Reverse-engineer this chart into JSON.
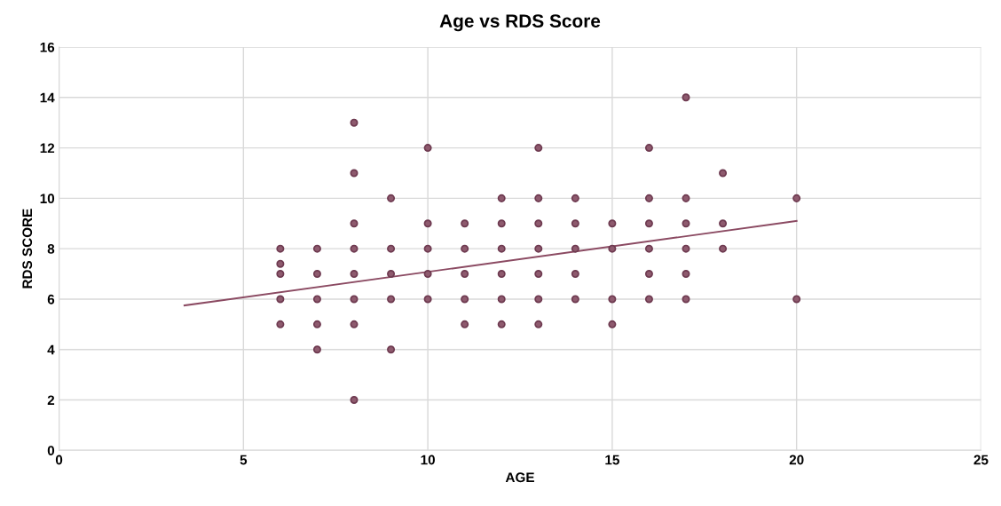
{
  "chart_data": {
    "type": "scatter",
    "title": "Age vs RDS Score",
    "xlabel": "AGE",
    "ylabel": "RDS SCORE",
    "xlim": [
      0,
      25
    ],
    "xticks": [
      0,
      5,
      10,
      15,
      20,
      25
    ],
    "ylim": [
      0,
      16
    ],
    "yticks": [
      0,
      2,
      4,
      6,
      8,
      10,
      12,
      14,
      16
    ],
    "grid": true,
    "series": [
      {
        "marker": "circle",
        "color": "#8e5a6e",
        "x": [
          6,
          6,
          6,
          6,
          6,
          7,
          7,
          7,
          7,
          7,
          8,
          8,
          8,
          8,
          8,
          8,
          8,
          8,
          9,
          9,
          9,
          9,
          9,
          10,
          10,
          10,
          10,
          10,
          11,
          11,
          11,
          11,
          11,
          12,
          12,
          12,
          12,
          12,
          12,
          13,
          13,
          13,
          13,
          13,
          13,
          13,
          14,
          14,
          14,
          14,
          14,
          15,
          15,
          15,
          15,
          16,
          16,
          16,
          16,
          16,
          16,
          17,
          17,
          17,
          17,
          17,
          17,
          18,
          18,
          18,
          20,
          20
        ],
        "values": [
          8,
          7.4,
          7,
          6,
          5,
          8,
          7,
          6,
          5,
          4,
          13,
          11,
          9,
          8,
          7,
          6,
          5,
          2,
          10,
          8,
          7,
          6,
          4,
          12,
          9,
          8,
          7,
          6,
          9,
          8,
          7,
          6,
          5,
          10,
          9,
          8,
          7,
          6,
          5,
          12,
          10,
          9,
          8,
          7,
          6,
          5,
          10,
          9,
          8,
          7,
          6,
          9,
          8,
          6,
          5,
          12,
          10,
          9,
          8,
          7,
          6,
          14,
          10,
          9,
          8,
          7,
          6,
          11,
          9,
          8,
          10,
          6
        ]
      },
      {
        "type": "line",
        "color": "#8b4a62",
        "marker": "none",
        "line_style": "solid",
        "x": [
          3.4,
          20
        ],
        "values": [
          5.75,
          9.1
        ]
      }
    ]
  }
}
